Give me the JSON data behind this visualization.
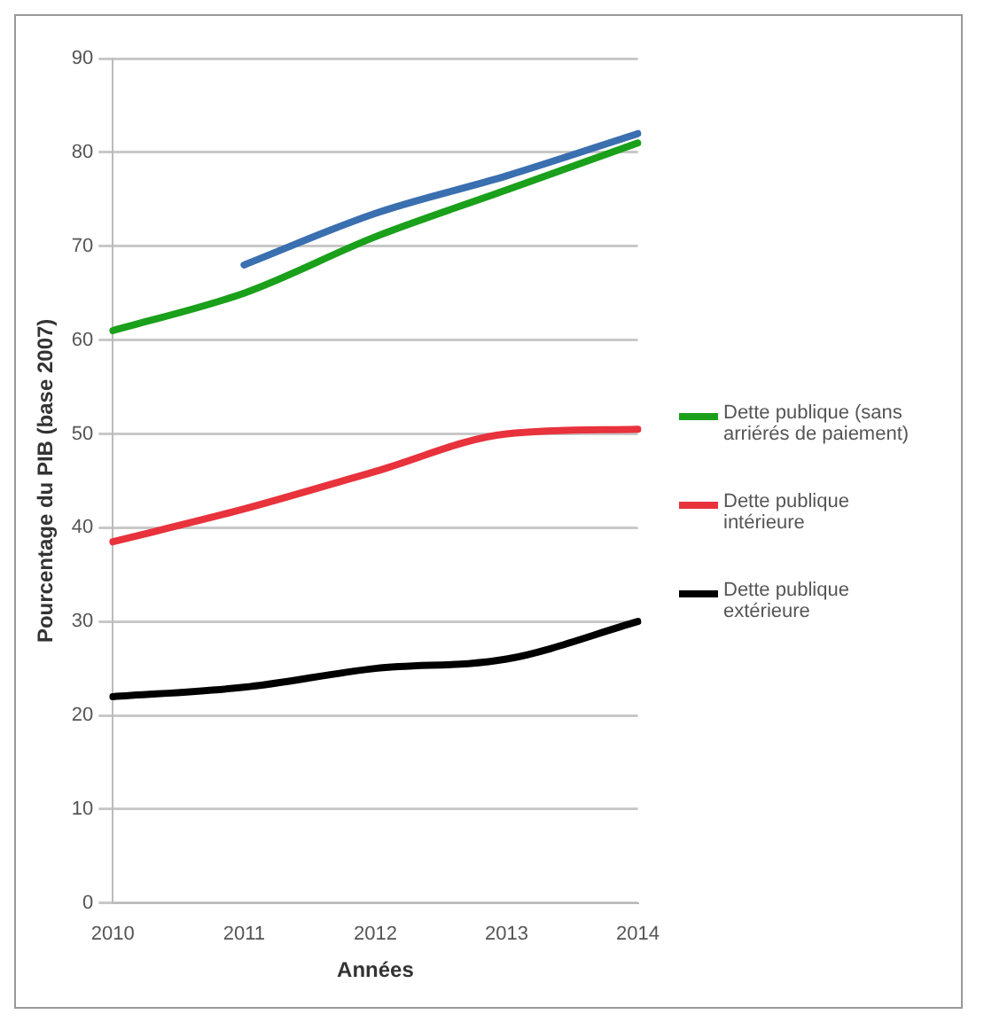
{
  "chart_data": {
    "type": "line",
    "xlabel": "Années",
    "ylabel": "Pourcentage du PIB (base 2007)",
    "categories": [
      "2010",
      "2011",
      "2012",
      "2013",
      "2014"
    ],
    "series": [
      {
        "name": "Dette publique (sans arriérés de paiement)",
        "color": "#1aa01a",
        "values": [
          61,
          65,
          71,
          76,
          81
        ]
      },
      {
        "color": "#3a6fb0",
        "values": [
          null,
          68,
          73.5,
          77.5,
          82
        ]
      },
      {
        "name": "Dette publique intérieure",
        "color": "#e8323c",
        "values": [
          38.5,
          42,
          46,
          50,
          50.5
        ]
      },
      {
        "name": "Dette publique extérieure",
        "color": "#000000",
        "values": [
          22,
          23,
          25,
          26,
          30
        ]
      }
    ],
    "ylim": [
      0,
      90
    ],
    "yticks": [
      0,
      10,
      20,
      30,
      40,
      50,
      60,
      70,
      80,
      90
    ],
    "grid": "y",
    "legend": "right",
    "marker": "none",
    "line_style": "solid"
  }
}
